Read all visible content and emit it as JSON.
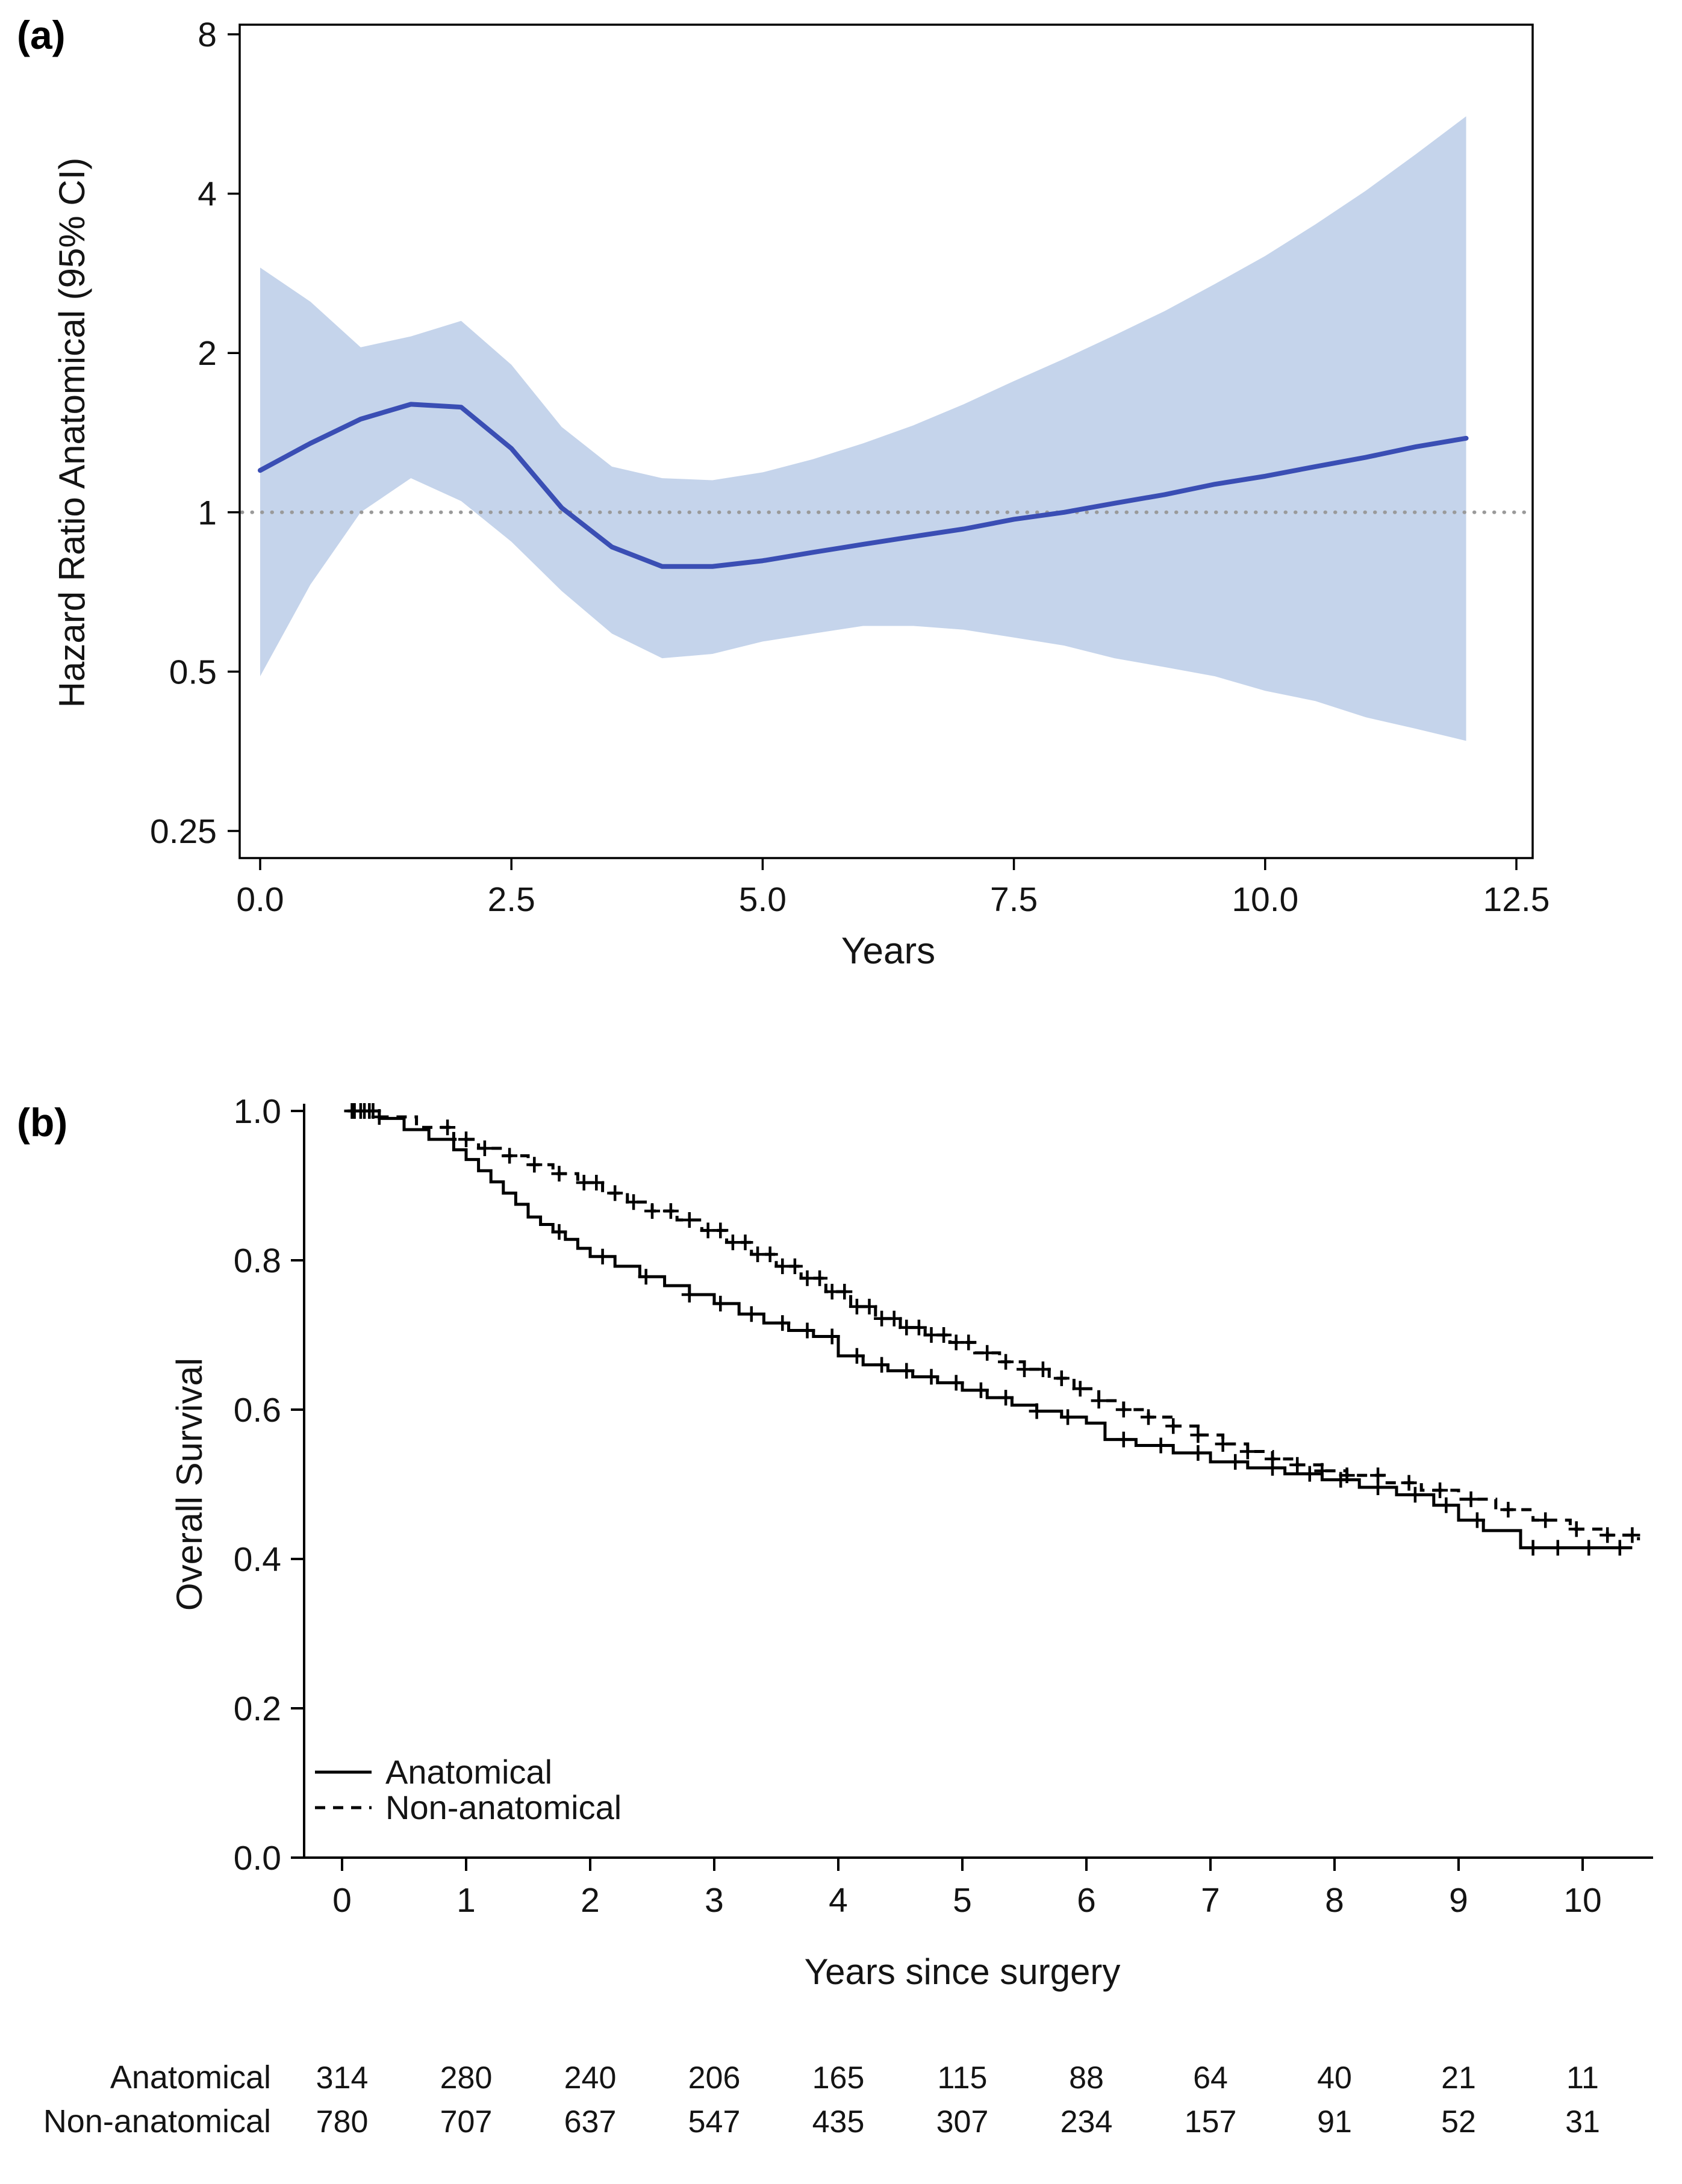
{
  "figure": {
    "panel_a_label": "(a)",
    "panel_b_label": "(b)"
  },
  "chart_data": [
    {
      "type": "line",
      "panel": "a",
      "title": "",
      "ylabel": "Hazard Ratio Anatomical (95% CI)",
      "xlabel": "Years",
      "yscale": "log2",
      "ylim": [
        0.25,
        8
      ],
      "xlim": [
        0,
        12.5
      ],
      "yticks": [
        8,
        4,
        2,
        1,
        0.5,
        0.25
      ],
      "ytick_labels": [
        "8",
        "4",
        "2",
        "1",
        "0.5",
        "0.25"
      ],
      "xticks": [
        0,
        2.5,
        5,
        7.5,
        10,
        12.5
      ],
      "xtick_labels": [
        "0.0",
        "2.5",
        "5.0",
        "7.5",
        "10.0",
        "12.5"
      ],
      "reference_line": 1,
      "line_color": "#3a4eb4",
      "band_color": "#c5d4eb",
      "reference_color": "#9a9a9a",
      "x": [
        0,
        0.5,
        1,
        1.5,
        2,
        2.5,
        3,
        3.5,
        4,
        4.5,
        5,
        5.5,
        6,
        6.5,
        7,
        7.5,
        8,
        8.5,
        9,
        9.5,
        10,
        10.5,
        11,
        11.5,
        12
      ],
      "hr": [
        1.2,
        1.35,
        1.5,
        1.6,
        1.58,
        1.32,
        1.02,
        0.86,
        0.79,
        0.79,
        0.81,
        0.84,
        0.87,
        0.9,
        0.93,
        0.97,
        1.0,
        1.04,
        1.08,
        1.13,
        1.17,
        1.22,
        1.27,
        1.33,
        1.38
      ],
      "ci_upper": [
        2.9,
        2.5,
        2.05,
        2.15,
        2.3,
        1.9,
        1.45,
        1.22,
        1.16,
        1.15,
        1.19,
        1.26,
        1.35,
        1.46,
        1.6,
        1.77,
        1.95,
        2.16,
        2.4,
        2.7,
        3.05,
        3.5,
        4.05,
        4.75,
        5.6
      ],
      "ci_lower": [
        0.49,
        0.73,
        1.0,
        1.16,
        1.05,
        0.88,
        0.71,
        0.59,
        0.53,
        0.54,
        0.57,
        0.59,
        0.61,
        0.61,
        0.6,
        0.58,
        0.56,
        0.53,
        0.51,
        0.49,
        0.46,
        0.44,
        0.41,
        0.39,
        0.37
      ]
    },
    {
      "type": "km",
      "panel": "b",
      "title": "",
      "ylabel": "Overall Survival",
      "xlabel": "Years since surgery",
      "ylim": [
        0.0,
        1.0
      ],
      "xlim": [
        0,
        10.5
      ],
      "yticks": [
        1.0,
        0.8,
        0.6,
        0.4,
        0.2,
        0.0
      ],
      "ytick_labels": [
        "1.0",
        "0.8",
        "0.6",
        "0.4",
        "0.2",
        "0.0"
      ],
      "xticks": [
        0,
        1,
        2,
        3,
        4,
        5,
        6,
        7,
        8,
        9,
        10
      ],
      "xtick_labels": [
        "0",
        "1",
        "2",
        "3",
        "4",
        "5",
        "6",
        "7",
        "8",
        "9",
        "10"
      ],
      "legend_position": "bottom-left",
      "series": [
        {
          "name": "Anatomical",
          "style": "solid",
          "points": [
            [
              0.05,
              1.0
            ],
            [
              0.3,
              0.99
            ],
            [
              0.5,
              0.975
            ],
            [
              0.7,
              0.962
            ],
            [
              0.9,
              0.948
            ],
            [
              1.0,
              0.935
            ],
            [
              1.1,
              0.92
            ],
            [
              1.2,
              0.905
            ],
            [
              1.3,
              0.89
            ],
            [
              1.4,
              0.875
            ],
            [
              1.5,
              0.858
            ],
            [
              1.6,
              0.848
            ],
            [
              1.7,
              0.838
            ],
            [
              1.8,
              0.828
            ],
            [
              1.9,
              0.816
            ],
            [
              2.0,
              0.805
            ],
            [
              2.2,
              0.792
            ],
            [
              2.4,
              0.778
            ],
            [
              2.6,
              0.766
            ],
            [
              2.8,
              0.754
            ],
            [
              3.0,
              0.742
            ],
            [
              3.2,
              0.728
            ],
            [
              3.4,
              0.716
            ],
            [
              3.6,
              0.706
            ],
            [
              3.8,
              0.698
            ],
            [
              4.0,
              0.672
            ],
            [
              4.2,
              0.66
            ],
            [
              4.4,
              0.652
            ],
            [
              4.6,
              0.644
            ],
            [
              4.8,
              0.636
            ],
            [
              5.0,
              0.626
            ],
            [
              5.2,
              0.616
            ],
            [
              5.4,
              0.606
            ],
            [
              5.6,
              0.598
            ],
            [
              5.8,
              0.59
            ],
            [
              6.0,
              0.582
            ],
            [
              6.15,
              0.56
            ],
            [
              6.4,
              0.552
            ],
            [
              6.7,
              0.542
            ],
            [
              7.0,
              0.53
            ],
            [
              7.3,
              0.522
            ],
            [
              7.6,
              0.514
            ],
            [
              7.9,
              0.506
            ],
            [
              8.2,
              0.496
            ],
            [
              8.5,
              0.486
            ],
            [
              8.8,
              0.472
            ],
            [
              9.0,
              0.452
            ],
            [
              9.2,
              0.438
            ],
            [
              9.5,
              0.415
            ],
            [
              10.4,
              0.415
            ]
          ],
          "censors": [
            0.1,
            0.18,
            0.25,
            1.75,
            2.1,
            2.45,
            2.8,
            3.05,
            3.3,
            3.55,
            3.75,
            3.95,
            4.15,
            4.35,
            4.55,
            4.75,
            4.95,
            5.15,
            5.35,
            5.6,
            5.85,
            6.3,
            6.6,
            6.9,
            7.2,
            7.5,
            7.8,
            8.05,
            8.35,
            8.65,
            8.9,
            9.15,
            9.6,
            9.8,
            10.05,
            10.3
          ]
        },
        {
          "name": "Non-anatomical",
          "style": "dashed",
          "points": [
            [
              0.05,
              1.0
            ],
            [
              0.3,
              0.992
            ],
            [
              0.6,
              0.978
            ],
            [
              0.9,
              0.962
            ],
            [
              1.1,
              0.95
            ],
            [
              1.3,
              0.94
            ],
            [
              1.5,
              0.928
            ],
            [
              1.7,
              0.916
            ],
            [
              1.9,
              0.904
            ],
            [
              2.1,
              0.89
            ],
            [
              2.3,
              0.878
            ],
            [
              2.5,
              0.866
            ],
            [
              2.7,
              0.854
            ],
            [
              2.9,
              0.84
            ],
            [
              3.1,
              0.824
            ],
            [
              3.3,
              0.808
            ],
            [
              3.5,
              0.792
            ],
            [
              3.7,
              0.776
            ],
            [
              3.9,
              0.758
            ],
            [
              4.1,
              0.738
            ],
            [
              4.3,
              0.722
            ],
            [
              4.5,
              0.71
            ],
            [
              4.7,
              0.7
            ],
            [
              4.9,
              0.69
            ],
            [
              5.1,
              0.676
            ],
            [
              5.3,
              0.664
            ],
            [
              5.5,
              0.654
            ],
            [
              5.7,
              0.642
            ],
            [
              5.9,
              0.628
            ],
            [
              6.1,
              0.612
            ],
            [
              6.3,
              0.6
            ],
            [
              6.5,
              0.59
            ],
            [
              6.7,
              0.578
            ],
            [
              6.9,
              0.566
            ],
            [
              7.1,
              0.554
            ],
            [
              7.3,
              0.544
            ],
            [
              7.5,
              0.534
            ],
            [
              7.7,
              0.526
            ],
            [
              7.9,
              0.518
            ],
            [
              8.1,
              0.512
            ],
            [
              8.4,
              0.502
            ],
            [
              8.7,
              0.492
            ],
            [
              9.0,
              0.48
            ],
            [
              9.3,
              0.466
            ],
            [
              9.6,
              0.452
            ],
            [
              9.9,
              0.44
            ],
            [
              10.2,
              0.432
            ],
            [
              10.45,
              0.425
            ]
          ],
          "censors": [
            0.08,
            0.15,
            0.22,
            0.3,
            0.85,
            1.0,
            1.15,
            1.35,
            1.55,
            1.75,
            1.95,
            2.05,
            2.2,
            2.35,
            2.5,
            2.65,
            2.8,
            2.95,
            3.05,
            3.15,
            3.25,
            3.35,
            3.45,
            3.55,
            3.65,
            3.75,
            3.85,
            3.95,
            4.05,
            4.15,
            4.25,
            4.35,
            4.45,
            4.55,
            4.65,
            4.75,
            4.85,
            4.95,
            5.05,
            5.2,
            5.35,
            5.5,
            5.65,
            5.8,
            5.95,
            6.1,
            6.3,
            6.5,
            6.7,
            6.9,
            7.1,
            7.3,
            7.5,
            7.7,
            7.9,
            8.1,
            8.35,
            8.6,
            8.85,
            9.1,
            9.4,
            9.7,
            9.95,
            10.2,
            10.4
          ]
        }
      ]
    }
  ],
  "risk_table": {
    "rows": [
      {
        "label": "Anatomical",
        "counts": [
          314,
          280,
          240,
          206,
          165,
          115,
          88,
          64,
          40,
          21,
          11
        ]
      },
      {
        "label": "Non-anatomical",
        "counts": [
          780,
          707,
          637,
          547,
          435,
          307,
          234,
          157,
          91,
          52,
          31
        ]
      }
    ]
  }
}
